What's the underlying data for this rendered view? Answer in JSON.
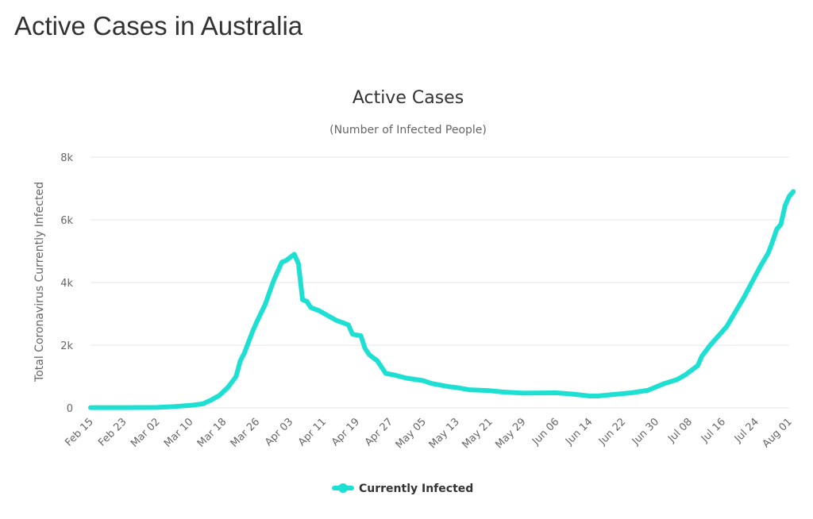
{
  "page_title": "Active Cases in Australia",
  "chart_data": {
    "type": "line",
    "title": "Active Cases",
    "subtitle": "(Number of Infected People)",
    "ylabel": "Total Coronavirus Currently Infected",
    "xlabel": "",
    "ylim": [
      0,
      8000
    ],
    "yticks": [
      0,
      2000,
      4000,
      6000,
      8000
    ],
    "ytick_labels": [
      "0",
      "2k",
      "4k",
      "6k",
      "8k"
    ],
    "xticks": [
      "Feb 15",
      "Feb 23",
      "Mar 02",
      "Mar 10",
      "Mar 18",
      "Mar 26",
      "Apr 03",
      "Apr 11",
      "Apr 19",
      "Apr 27",
      "May 05",
      "May 13",
      "May 21",
      "May 29",
      "Jun 06",
      "Jun 14",
      "Jun 22",
      "Jun 30",
      "Jul 08",
      "Jul 16",
      "Jul 24",
      "Aug 01"
    ],
    "grid": true,
    "legend_position": "bottom-center",
    "series": [
      {
        "name": "Currently Infected",
        "color": "#1de0d3",
        "points": [
          [
            "Feb 15",
            10
          ],
          [
            "Feb 23",
            10
          ],
          [
            "Mar 02",
            15
          ],
          [
            "Mar 06",
            40
          ],
          [
            "Mar 10",
            80
          ],
          [
            "Mar 13",
            130
          ],
          [
            "Mar 15",
            250
          ],
          [
            "Mar 17",
            400
          ],
          [
            "Mar 19",
            650
          ],
          [
            "Mar 21",
            1000
          ],
          [
            "Mar 22",
            1500
          ],
          [
            "Mar 23",
            1750
          ],
          [
            "Mar 24",
            2100
          ],
          [
            "Mar 25",
            2450
          ],
          [
            "Mar 26",
            2750
          ],
          [
            "Mar 28",
            3300
          ],
          [
            "Mar 30",
            4050
          ],
          [
            "Apr 01",
            4650
          ],
          [
            "Apr 02",
            4700
          ],
          [
            "Apr 03",
            4800
          ],
          [
            "Apr 04",
            4900
          ],
          [
            "Apr 05",
            4600
          ],
          [
            "Apr 06",
            3450
          ],
          [
            "Apr 07",
            3400
          ],
          [
            "Apr 08",
            3200
          ],
          [
            "Apr 10",
            3100
          ],
          [
            "Apr 12",
            2950
          ],
          [
            "Apr 14",
            2800
          ],
          [
            "Apr 17",
            2650
          ],
          [
            "Apr 18",
            2350
          ],
          [
            "Apr 20",
            2300
          ],
          [
            "Apr 21",
            1900
          ],
          [
            "Apr 22",
            1700
          ],
          [
            "Apr 24",
            1500
          ],
          [
            "Apr 26",
            1100
          ],
          [
            "Apr 28",
            1050
          ],
          [
            "May 01",
            950
          ],
          [
            "May 05",
            870
          ],
          [
            "May 07",
            780
          ],
          [
            "May 11",
            680
          ],
          [
            "May 13",
            650
          ],
          [
            "May 16",
            580
          ],
          [
            "May 21",
            550
          ],
          [
            "May 24",
            510
          ],
          [
            "May 29",
            470
          ],
          [
            "Jun 06",
            480
          ],
          [
            "Jun 10",
            440
          ],
          [
            "Jun 14",
            380
          ],
          [
            "Jun 16",
            380
          ],
          [
            "Jun 20",
            430
          ],
          [
            "Jun 24",
            480
          ],
          [
            "Jun 28",
            560
          ],
          [
            "Jul 02",
            780
          ],
          [
            "Jul 05",
            900
          ],
          [
            "Jul 07",
            1050
          ],
          [
            "Jul 10",
            1350
          ],
          [
            "Jul 11",
            1650
          ],
          [
            "Jul 13",
            2000
          ],
          [
            "Jul 15",
            2300
          ],
          [
            "Jul 17",
            2600
          ],
          [
            "Jul 19",
            3050
          ],
          [
            "Jul 21",
            3500
          ],
          [
            "Jul 23",
            4000
          ],
          [
            "Jul 25",
            4500
          ],
          [
            "Jul 27",
            4950
          ],
          [
            "Jul 28",
            5300
          ],
          [
            "Jul 29",
            5700
          ],
          [
            "Jul 30",
            5850
          ],
          [
            "Jul 31",
            6450
          ],
          [
            "Aug 01",
            6750
          ],
          [
            "Aug 02",
            6900
          ]
        ]
      }
    ]
  }
}
